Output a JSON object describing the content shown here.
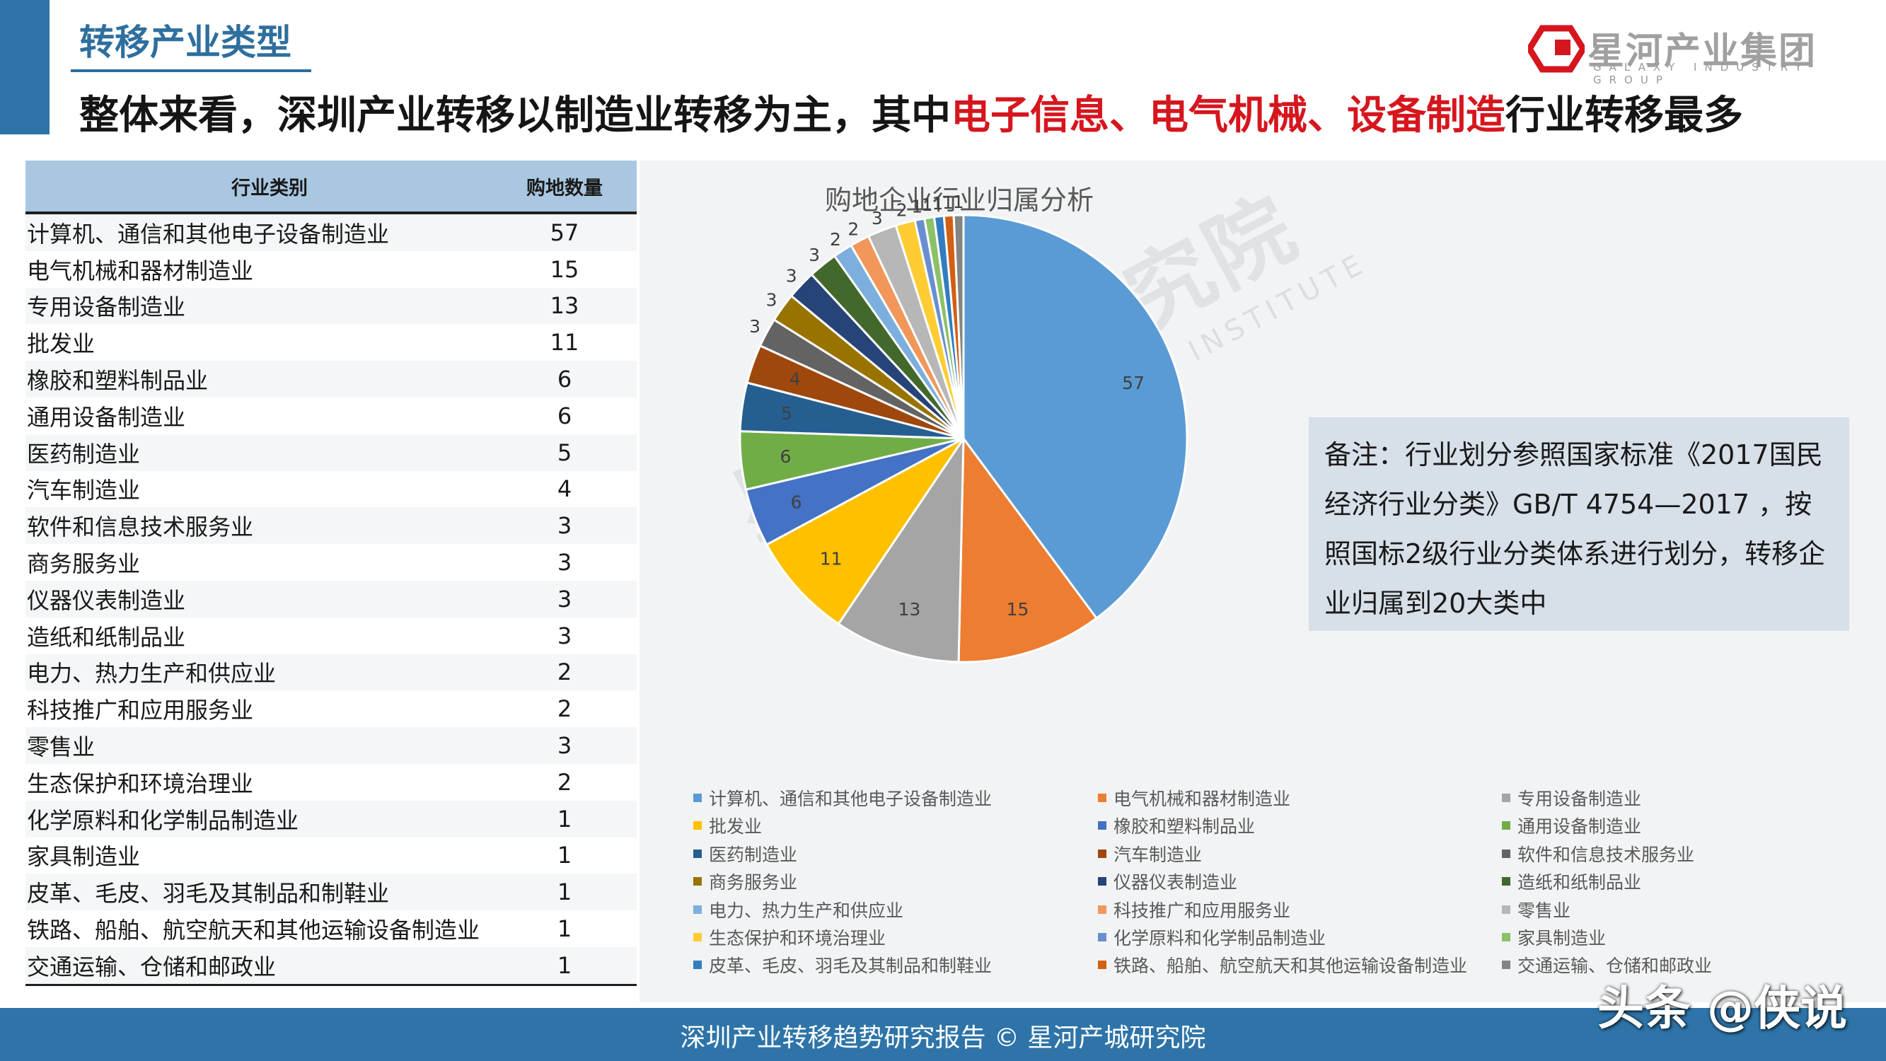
{
  "header": {
    "section_title": "转移产业类型",
    "headline_parts": [
      "整体来看，深圳产业转移以制造业转移为主，其中",
      "电子信息、电气机械、设备制造",
      "行业转移最多"
    ]
  },
  "logo": {
    "name_cn": "星河产业集团",
    "name_en": "GALAXY INDUSTRY GROUP",
    "colors": [
      "#d6161e",
      "#a0a0a0"
    ]
  },
  "table": {
    "headers": [
      "行业类别",
      "购地数量"
    ],
    "rows": [
      [
        "计算机、通信和其他电子设备制造业",
        "57"
      ],
      [
        "电气机械和器材制造业",
        "15"
      ],
      [
        "专用设备制造业",
        "13"
      ],
      [
        "批发业",
        "11"
      ],
      [
        "橡胶和塑料制品业",
        "6"
      ],
      [
        "通用设备制造业",
        "6"
      ],
      [
        "医药制造业",
        "5"
      ],
      [
        "汽车制造业",
        "4"
      ],
      [
        "软件和信息技术服务业",
        "3"
      ],
      [
        "商务服务业",
        "3"
      ],
      [
        "仪器仪表制造业",
        "3"
      ],
      [
        "造纸和纸制品业",
        "3"
      ],
      [
        "电力、热力生产和供应业",
        "2"
      ],
      [
        "科技推广和应用服务业",
        "2"
      ],
      [
        " 零售业",
        "3"
      ],
      [
        "生态保护和环境治理业",
        "2"
      ],
      [
        "化学原料和化学制品制造业",
        "1"
      ],
      [
        "家具制造业",
        "1"
      ],
      [
        "皮革、毛皮、羽毛及其制品和制鞋业",
        "1"
      ],
      [
        "铁路、船舶、航空航天和其他运输设备制造业",
        "1"
      ],
      [
        "交通运输、仓储和邮政业",
        "1"
      ]
    ]
  },
  "chart_data": {
    "type": "pie",
    "title": "购地企业行业归属分析",
    "categories": [
      "计算机、通信和其他电子设备制造业",
      "电气机械和器材制造业",
      "专用设备制造业",
      "批发业",
      "橡胶和塑料制品业",
      "通用设备制造业",
      "医药制造业",
      "汽车制造业",
      "软件和信息技术服务业",
      "商务服务业",
      "仪器仪表制造业",
      "造纸和纸制品业",
      "电力、热力生产和供应业",
      "科技推广和应用服务业",
      " 零售业",
      "生态保护和环境治理业",
      "化学原料和化学制品制造业",
      "家具制造业",
      "皮革、毛皮、羽毛及其制品和制鞋业",
      "铁路、船舶、航空航天和其他运输设备制造业",
      "交通运输、仓储和邮政业"
    ],
    "values": [
      57,
      15,
      13,
      11,
      6,
      6,
      5,
      4,
      3,
      3,
      3,
      3,
      2,
      2,
      3,
      2,
      1,
      1,
      1,
      1,
      1
    ],
    "colors": [
      "#5b9bd5",
      "#ed7d31",
      "#a5a5a5",
      "#ffc000",
      "#4472c4",
      "#70ad47",
      "#255e91",
      "#9e480e",
      "#636363",
      "#997300",
      "#264478",
      "#43682b",
      "#7cafdd",
      "#f1975a",
      "#b7b7b7",
      "#ffcd33",
      "#698ed0",
      "#8cc168",
      "#327dc2",
      "#d26012",
      "#848484"
    ],
    "legend_position": "bottom"
  },
  "note": {
    "text": "备注：行业划分参照国家标准《2017国民经济行业分类》GB/T 4754—2017 ，按照国标2级行业分类体系进行划分，转移企业归属到20大类中"
  },
  "watermark": {
    "cn": "星河产城研究院",
    "en": "GALAXY INNOVATION INSTITUTE"
  },
  "footer": {
    "text": "深圳产业转移趋势研究报告 © 星河产城研究院"
  },
  "overlay": {
    "toutiao": "头条 @侠说"
  }
}
